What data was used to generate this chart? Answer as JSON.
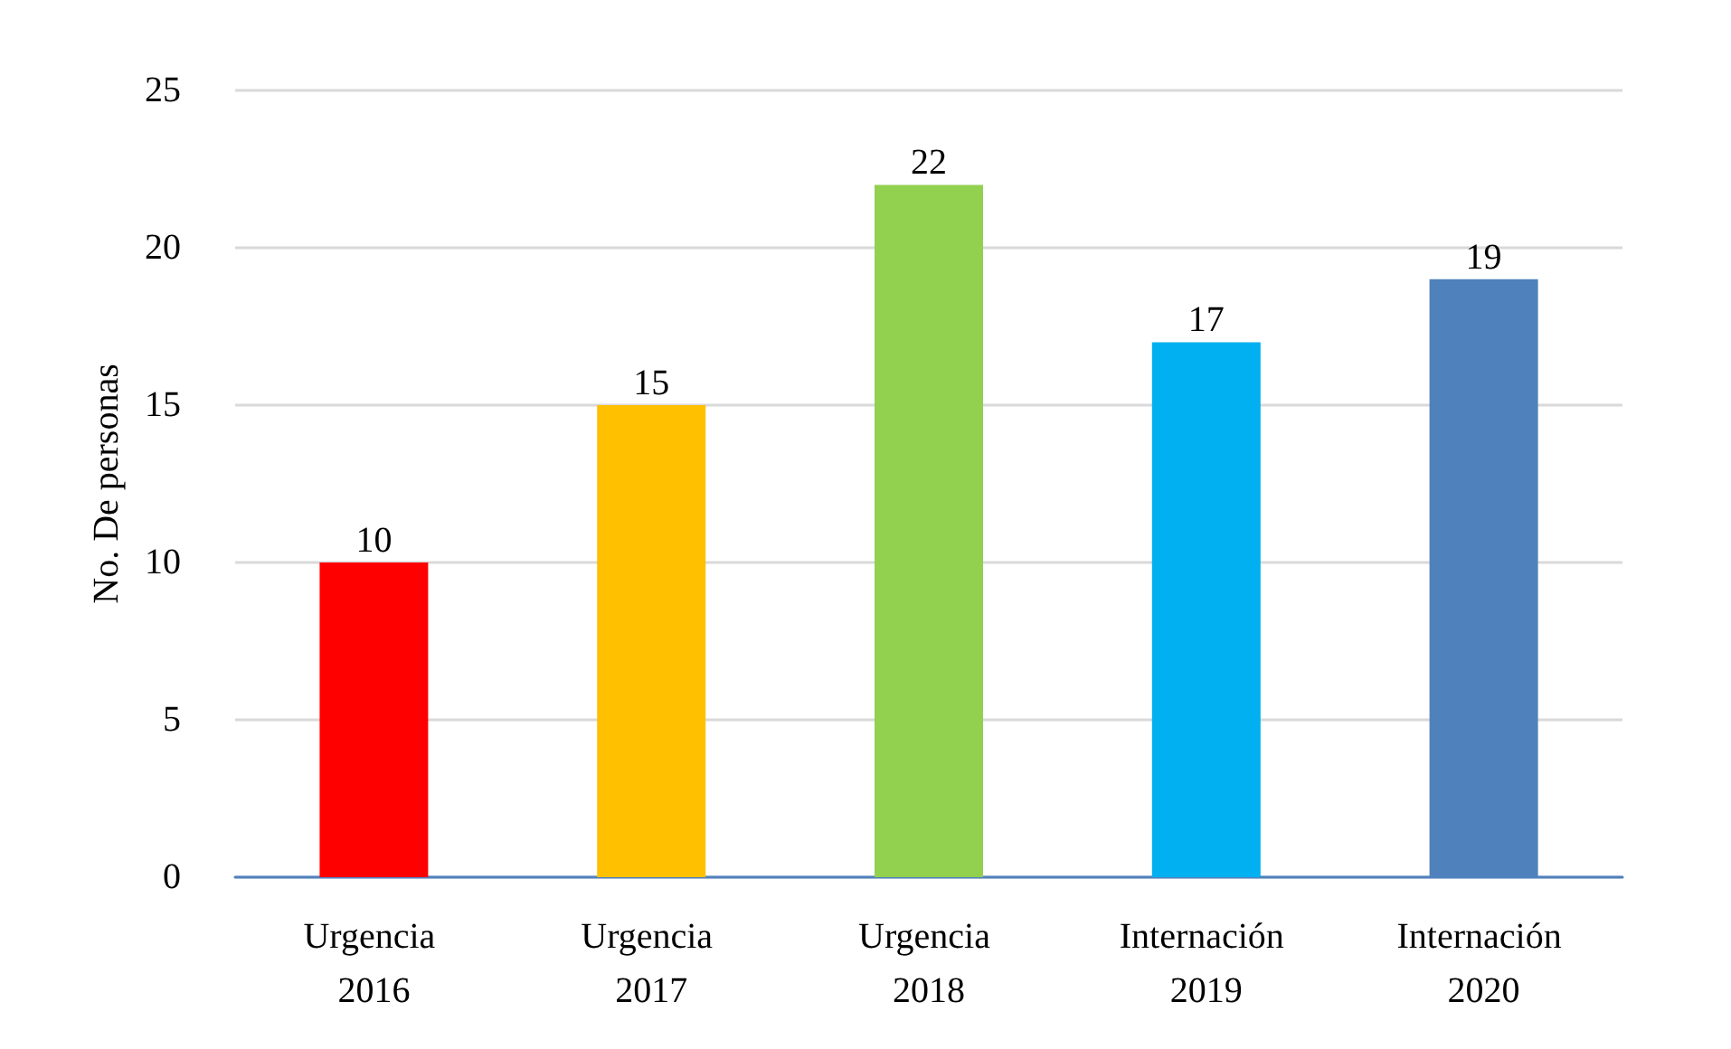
{
  "chart_data": {
    "type": "bar",
    "ylabel": "No. De personas",
    "categories": [
      "Urgencia 2016",
      "Urgencia 2017",
      "Urgencia 2018",
      "Internación 2019",
      "Internación 2020"
    ],
    "values": [
      10,
      15,
      22,
      17,
      19
    ],
    "colors": [
      "#ff0000",
      "#ffc000",
      "#92d050",
      "#00b0f0",
      "#4f81bd"
    ],
    "ylim": [
      0,
      25
    ],
    "yticks": [
      0,
      5,
      10,
      15,
      20,
      25
    ],
    "grid": "y",
    "data_labels": true
  }
}
